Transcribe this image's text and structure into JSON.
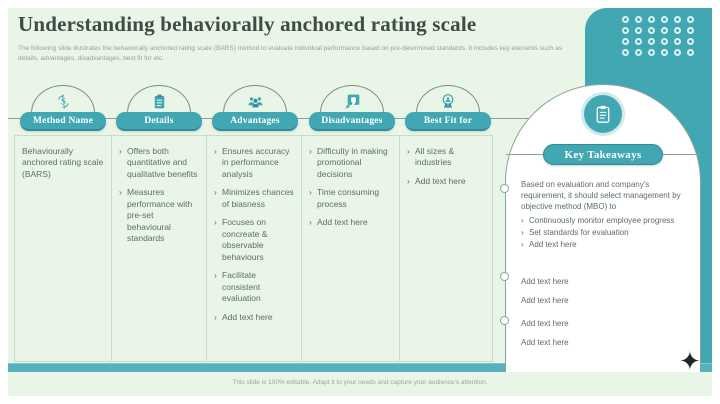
{
  "slide": {
    "title": "Understanding behaviorally anchored rating scale",
    "subtitle": "The following slide illustrates the behaviorally anchored rating scale (BARS) method to evaluate individual performance based on pre-determined standards. It includes key elements such as details, advantages, disadvantages, best fit for etc.",
    "footer": "This slide is 100% editable. Adapt it to your needs and capture your audience's attention."
  },
  "bullet_char": "›",
  "columns": [
    {
      "header": "Method Name",
      "icon": "dollar-exchange-icon",
      "items": [
        "Behaviourally anchored rating scale (BARS)"
      ]
    },
    {
      "header": "Details",
      "icon": "checklist-document-icon",
      "items": [
        "Offers both quantitative and qualitative benefits",
        "Measures performance with pre-set behavioural standards"
      ]
    },
    {
      "header": "Advantages",
      "icon": "team-people-icon",
      "items": [
        "Ensures accuracy in performance analysis",
        "Minimizes chances of biasness",
        "Focuses on concreate & observable behaviours",
        "Facilitate consistent evaluation",
        "Add text here"
      ]
    },
    {
      "header": "Disadvantages",
      "icon": "thumbs-down-icon",
      "items": [
        "Difficulty in making promotional decisions",
        "Time consuming process",
        "Add text here"
      ]
    },
    {
      "header": "Best Fit for",
      "icon": "award-badge-icon",
      "items": [
        "All sizes & industries",
        "Add text here"
      ]
    }
  ],
  "key_takeaways": {
    "title": "Key Takeaways",
    "icon": "clipboard-icon",
    "intro": "Based on evaluation and company's requirement, it should select management by objective method (MBO) to",
    "bullets": [
      "Continuously monitor employee progress",
      "Set standards for evaluation",
      "Add text here"
    ],
    "group2": [
      "Add text here",
      "Add text here"
    ],
    "group3": [
      "Add text here",
      "Add text here"
    ]
  },
  "decor": {
    "dots": {
      "rows": 4,
      "cols": 6
    },
    "star_char": "✦"
  },
  "colors": {
    "teal": "#41a8b3",
    "mint": "#e9f5e6",
    "body_text": "#5d6e69",
    "title_text": "#3e4b47",
    "stripe": "#55b2bc",
    "white": "#ffffff"
  }
}
